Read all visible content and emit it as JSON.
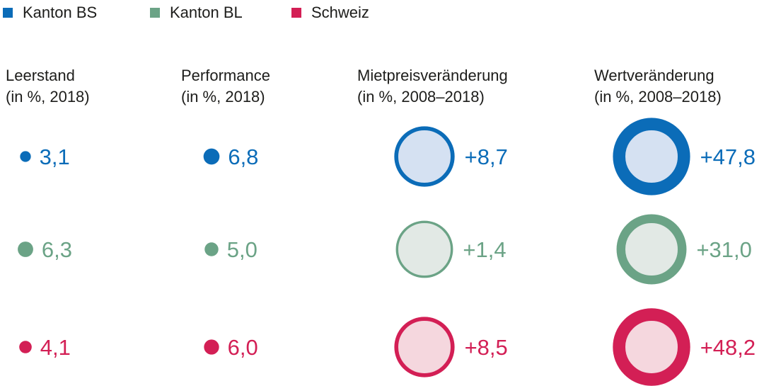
{
  "chart_data": {
    "type": "bubble-grid",
    "series": [
      {
        "name": "Kanton BS",
        "color": "#0b6cb8",
        "fill": "#d5e1f2"
      },
      {
        "name": "Kanton BL",
        "color": "#6ba386",
        "fill": "#e2e9e5"
      },
      {
        "name": "Schweiz",
        "color": "#d31f55",
        "fill": "#f5d7de"
      }
    ],
    "columns": [
      {
        "title": "Leerstand",
        "subtitle": "(in %, 2018)",
        "style": "dot",
        "values": [
          3.1,
          6.3,
          4.1
        ],
        "labels": [
          "3,1",
          "6,3",
          "4,1"
        ]
      },
      {
        "title": "Performance",
        "subtitle": "(in %, 2018)",
        "style": "dot",
        "values": [
          6.8,
          5.0,
          6.0
        ],
        "labels": [
          "6,8",
          "5,0",
          "6,0"
        ]
      },
      {
        "title": "Mietpreisveränderung",
        "subtitle": "(in %, 2008–2018)",
        "style": "ring",
        "values": [
          8.7,
          1.4,
          8.5
        ],
        "labels": [
          "+8,7",
          "+1,4",
          "+8,5"
        ]
      },
      {
        "title": "Wertveränderung",
        "subtitle": "(in %, 2008–2018)",
        "style": "ring",
        "values": [
          47.8,
          31.0,
          48.2
        ],
        "labels": [
          "+47,8",
          "+31,0",
          "+48,2"
        ]
      }
    ]
  }
}
